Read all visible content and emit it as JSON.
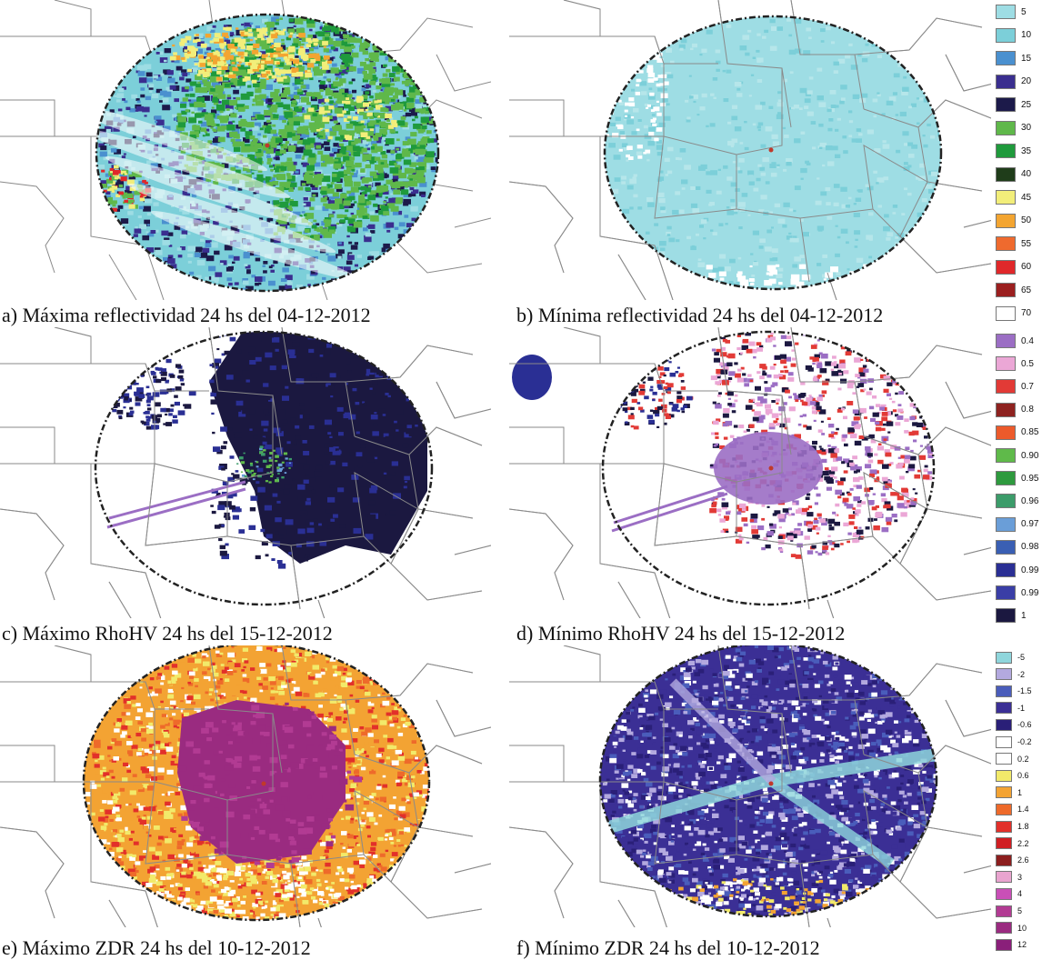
{
  "panels": [
    {
      "id": "a",
      "caption": "a) Máxima reflectividad 24 hs del 04-12-2012",
      "field": "maximum reflectivity"
    },
    {
      "id": "b",
      "caption": "b) Mínima reflectividad 24 hs del 04-12-2012",
      "field": "minimum reflectivity"
    },
    {
      "id": "c",
      "caption": "c) Máximo RhoHV 24 hs del 15-12-2012",
      "field": "maximum RhoHV"
    },
    {
      "id": "d",
      "caption": "d) Mínimo RhoHV 24 hs del 15-12-2012",
      "field": "minimum RhoHV"
    },
    {
      "id": "e",
      "caption": "e) Máximo ZDR 24 hs del 10-12-2012",
      "field": "maximum ZDR"
    },
    {
      "id": "f",
      "caption": "f) Mínimo ZDR 24 hs del 10-12-2012",
      "field": "minimum ZDR"
    }
  ],
  "legends": {
    "reflectivity": [
      {
        "label": "5",
        "color": "#9edde4"
      },
      {
        "label": "10",
        "color": "#7ccfd9"
      },
      {
        "label": "15",
        "color": "#4a90cf"
      },
      {
        "label": "20",
        "color": "#3a2e8f"
      },
      {
        "label": "25",
        "color": "#1c1a4a"
      },
      {
        "label": "30",
        "color": "#5fb84a"
      },
      {
        "label": "35",
        "color": "#1f9a3c"
      },
      {
        "label": "40",
        "color": "#1f3d1a"
      },
      {
        "label": "45",
        "color": "#f2ee7a"
      },
      {
        "label": "50",
        "color": "#f3a531"
      },
      {
        "label": "55",
        "color": "#ef6a2e"
      },
      {
        "label": "60",
        "color": "#e0282a"
      },
      {
        "label": "65",
        "color": "#9b1f1f"
      },
      {
        "label": "70",
        "color": "#ffffff"
      }
    ],
    "rhohv": [
      {
        "label": "0.4",
        "color": "#9b6ec4"
      },
      {
        "label": "0.5",
        "color": "#eba7d6"
      },
      {
        "label": "0.7",
        "color": "#e23a36"
      },
      {
        "label": "0.8",
        "color": "#8e2220"
      },
      {
        "label": "0.85",
        "color": "#ec5a2b"
      },
      {
        "label": "0.90",
        "color": "#5fba4a"
      },
      {
        "label": "0.95",
        "color": "#2e9a3e"
      },
      {
        "label": "0.96",
        "color": "#3c9c6a"
      },
      {
        "label": "0.97",
        "color": "#6a9ed8"
      },
      {
        "label": "0.98",
        "color": "#3a5fb3"
      },
      {
        "label": "0.99",
        "color": "#2a2f94"
      },
      {
        "label": "0.99",
        "color": "#3a3ea6"
      },
      {
        "label": "1",
        "color": "#1b1840"
      }
    ],
    "zdr": [
      {
        "label": "-5",
        "color": "#8fd6dc"
      },
      {
        "label": "-2",
        "color": "#b3a9df"
      },
      {
        "label": "-1.5",
        "color": "#4a5dbb"
      },
      {
        "label": "-1",
        "color": "#3b2f95"
      },
      {
        "label": "-0.6",
        "color": "#2a1f78"
      },
      {
        "label": "-0.2",
        "color": "#ffffff"
      },
      {
        "label": "0.2",
        "color": "#ffffff"
      },
      {
        "label": "0.6",
        "color": "#f2ea6a"
      },
      {
        "label": "1",
        "color": "#f3a333"
      },
      {
        "label": "1.4",
        "color": "#ee6a2a"
      },
      {
        "label": "1.8",
        "color": "#e2302a"
      },
      {
        "label": "2.2",
        "color": "#d01e22"
      },
      {
        "label": "2.6",
        "color": "#8c1e1e"
      },
      {
        "label": "3",
        "color": "#e9a4cf"
      },
      {
        "label": "4",
        "color": "#c94fb7"
      },
      {
        "label": "5",
        "color": "#b23b93"
      },
      {
        "label": "10",
        "color": "#9a2b80"
      },
      {
        "label": "12",
        "color": "#8a1f7a"
      }
    ]
  }
}
